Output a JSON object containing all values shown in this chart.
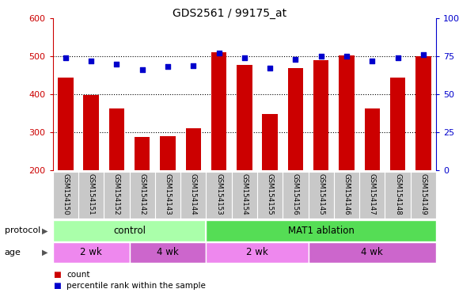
{
  "title": "GDS2561 / 99175_at",
  "samples": [
    "GSM154150",
    "GSM154151",
    "GSM154152",
    "GSM154142",
    "GSM154143",
    "GSM154144",
    "GSM154153",
    "GSM154154",
    "GSM154155",
    "GSM154156",
    "GSM154145",
    "GSM154146",
    "GSM154147",
    "GSM154148",
    "GSM154149"
  ],
  "count_values": [
    443,
    397,
    362,
    287,
    290,
    311,
    510,
    477,
    348,
    468,
    490,
    502,
    362,
    443,
    500
  ],
  "percentile_values": [
    74,
    72,
    70,
    66,
    68,
    69,
    77,
    74,
    67,
    73,
    75,
    75,
    72,
    74,
    76
  ],
  "ylim_left": [
    200,
    600
  ],
  "ylim_right": [
    0,
    100
  ],
  "yticks_left": [
    200,
    300,
    400,
    500,
    600
  ],
  "yticks_right": [
    0,
    25,
    50,
    75,
    100
  ],
  "bar_color": "#cc0000",
  "dot_color": "#0000cc",
  "xticklabel_bg": "#c8c8c8",
  "protocol_control_color": "#aaffaa",
  "protocol_ablation_color": "#55dd55",
  "age_color_light": "#ee88ee",
  "age_color_dark": "#cc66cc",
  "protocol_label": "protocol",
  "age_label": "age",
  "legend_count": "count",
  "legend_percentile": "percentile rank within the sample",
  "control_label": "control",
  "ablation_label": "MAT1 ablation",
  "age_ranges": [
    [
      0,
      3,
      "#ee88ee",
      "2 wk"
    ],
    [
      3,
      6,
      "#cc66cc",
      "4 wk"
    ],
    [
      6,
      10,
      "#ee88ee",
      "2 wk"
    ],
    [
      10,
      15,
      "#cc66cc",
      "4 wk"
    ]
  ]
}
